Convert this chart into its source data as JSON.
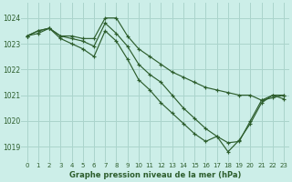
{
  "bg_color": "#cceee8",
  "grid_color": "#aad4cc",
  "line_color": "#2d5e2d",
  "xlabel": "Graphe pression niveau de la mer (hPa)",
  "ylim": [
    1018.4,
    1024.6
  ],
  "xlim": [
    -0.5,
    23.5
  ],
  "yticks": [
    1019,
    1020,
    1021,
    1022,
    1023,
    1024
  ],
  "xticks": [
    0,
    1,
    2,
    3,
    4,
    5,
    6,
    7,
    8,
    9,
    10,
    11,
    12,
    13,
    14,
    15,
    16,
    17,
    18,
    19,
    20,
    21,
    22,
    23
  ],
  "series": [
    [
      1023.3,
      1023.5,
      1023.6,
      1023.3,
      1023.3,
      1023.2,
      1023.2,
      1024.0,
      1024.0,
      1023.3,
      1022.8,
      1022.5,
      1022.2,
      1021.9,
      1021.7,
      1021.5,
      1021.3,
      1021.2,
      1021.1,
      1021.0,
      1021.0,
      1020.8,
      1020.9,
      1021.0
    ],
    [
      1023.3,
      1023.5,
      1023.6,
      1023.3,
      1023.2,
      1023.1,
      1022.9,
      1023.8,
      1023.4,
      1022.9,
      1022.2,
      1021.8,
      1021.5,
      1021.0,
      1020.5,
      1020.1,
      1019.7,
      1019.4,
      1019.15,
      1019.2,
      1020.0,
      1020.8,
      1021.0,
      1021.0
    ],
    [
      1023.3,
      1023.4,
      1023.6,
      1023.2,
      1023.0,
      1022.8,
      1022.5,
      1023.5,
      1023.1,
      1022.4,
      1021.6,
      1021.2,
      1020.7,
      1020.3,
      1019.9,
      1019.5,
      1019.2,
      1019.4,
      1018.8,
      1019.25,
      1019.9,
      1020.7,
      1021.0,
      1020.85
    ]
  ]
}
